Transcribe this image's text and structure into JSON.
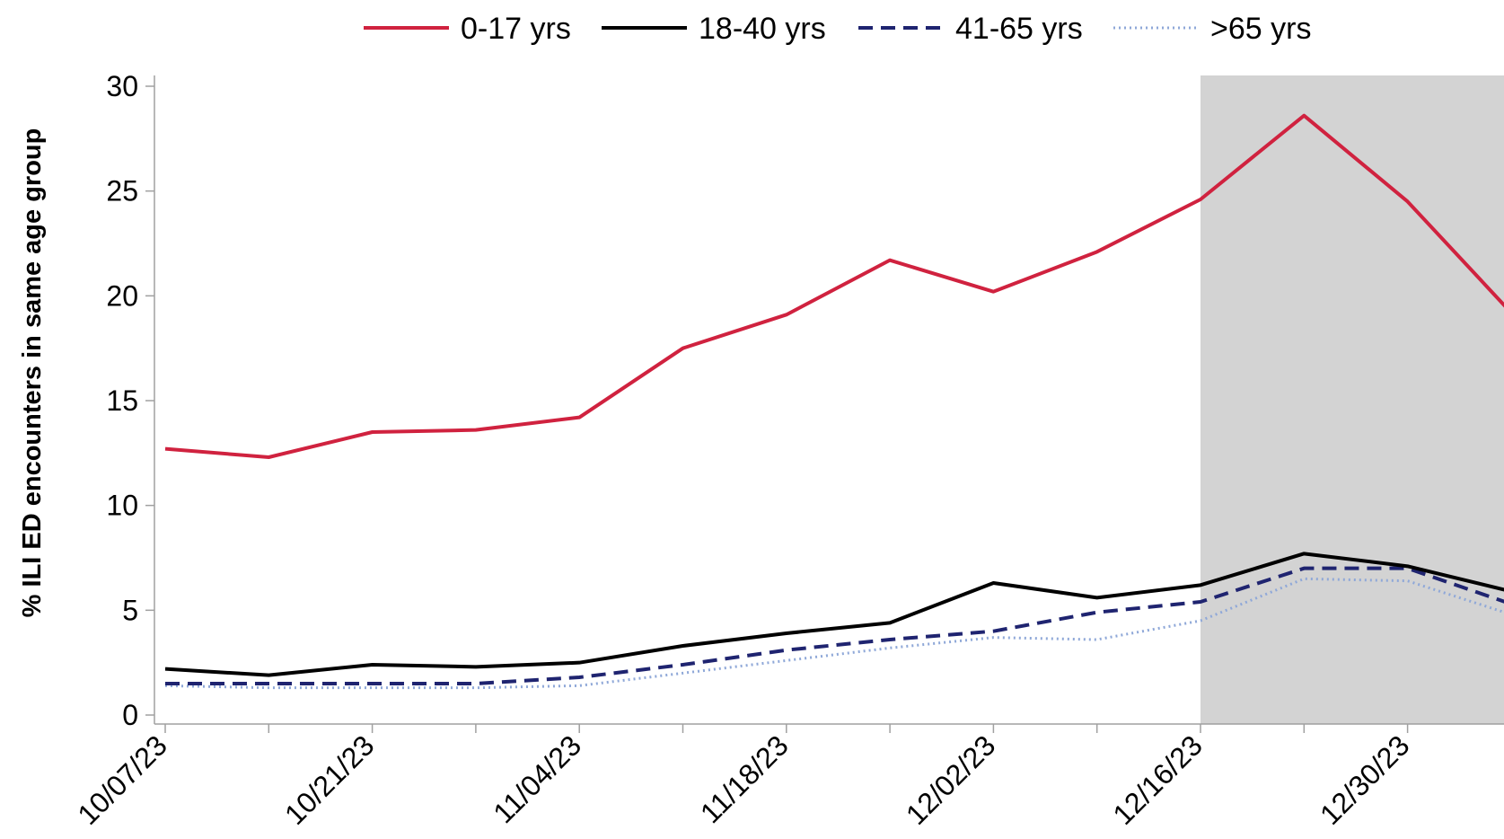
{
  "chart_data": {
    "type": "line",
    "ylabel": "% ILI ED encounters in same age group",
    "xlabel": "",
    "ylim": [
      0,
      30
    ],
    "yticks": [
      0,
      5,
      10,
      15,
      20,
      25,
      30
    ],
    "x": [
      "10/07/23",
      "10/14/23",
      "10/21/23",
      "10/28/23",
      "11/04/23",
      "11/11/23",
      "11/18/23",
      "11/25/23",
      "12/02/23",
      "12/09/23",
      "12/16/23",
      "12/23/23",
      "12/30/23",
      "01/06/24"
    ],
    "xtick_labels": [
      "10/07/23",
      "10/21/23",
      "11/04/23",
      "11/18/23",
      "12/02/23",
      "12/16/23",
      "12/30/23"
    ],
    "shaded_region": {
      "from": "12/16/23",
      "to": "01/06/24",
      "color": "#d3d3d3"
    },
    "legend_position": "top",
    "series": [
      {
        "name": "0-17 yrs",
        "color": "#d0223f",
        "style": "solid",
        "values": [
          12.7,
          12.3,
          13.5,
          13.6,
          14.2,
          17.5,
          19.1,
          21.7,
          20.2,
          22.1,
          24.6,
          28.6,
          24.5,
          19.2
        ]
      },
      {
        "name": "18-40 yrs",
        "color": "#000000",
        "style": "solid",
        "values": [
          2.2,
          1.9,
          2.4,
          2.3,
          2.5,
          3.3,
          3.9,
          4.4,
          6.3,
          5.6,
          6.2,
          7.7,
          7.1,
          5.9
        ]
      },
      {
        "name": "41-65 yrs",
        "color": "#1f2470",
        "style": "dashed",
        "values": [
          1.5,
          1.5,
          1.5,
          1.5,
          1.8,
          2.4,
          3.1,
          3.6,
          4.0,
          4.9,
          5.4,
          7.0,
          7.0,
          5.3
        ]
      },
      {
        "name": ">65 yrs",
        "color": "#8fa8d8",
        "style": "dotted",
        "values": [
          1.4,
          1.3,
          1.3,
          1.3,
          1.4,
          2.0,
          2.6,
          3.2,
          3.7,
          3.6,
          4.5,
          6.5,
          6.4,
          4.8
        ]
      }
    ]
  }
}
